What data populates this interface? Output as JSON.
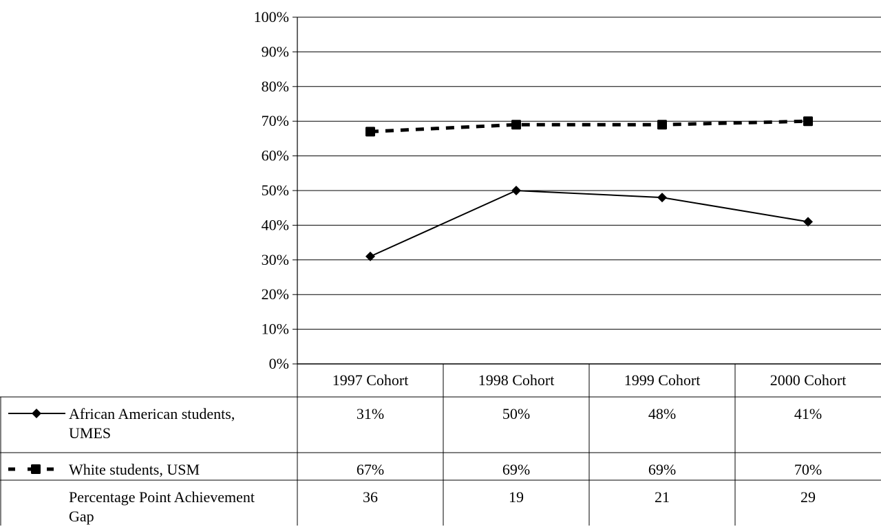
{
  "chart_data": {
    "type": "line",
    "categories": [
      "1997 Cohort",
      "1998 Cohort",
      "1999 Cohort",
      "2000 Cohort"
    ],
    "y_tick_labels": [
      "0%",
      "10%",
      "20%",
      "30%",
      "40%",
      "50%",
      "60%",
      "70%",
      "80%",
      "90%",
      "100%"
    ],
    "ylim": [
      0,
      100
    ],
    "grid": true,
    "legend": "data-table",
    "series": [
      {
        "name": "African American students, UMES",
        "name_lines": [
          "African American students,",
          "UMES"
        ],
        "values": [
          31,
          50,
          48,
          41
        ],
        "labels": [
          "31%",
          "50%",
          "48%",
          "41%"
        ],
        "marker": "diamond",
        "line_style": "solid",
        "color": "#000000"
      },
      {
        "name": "White students, USM",
        "name_lines": [
          "White students, USM"
        ],
        "values": [
          67,
          69,
          69,
          70
        ],
        "labels": [
          "67%",
          "69%",
          "69%",
          "70%"
        ],
        "marker": "square",
        "line_style": "dashed",
        "color": "#000000"
      }
    ],
    "gap_row": {
      "label": "Percentage Point Achievement Gap",
      "label_lines": [
        "Percentage Point Achievement",
        "Gap"
      ],
      "values": [
        "36",
        "19",
        "21",
        "29"
      ]
    }
  }
}
